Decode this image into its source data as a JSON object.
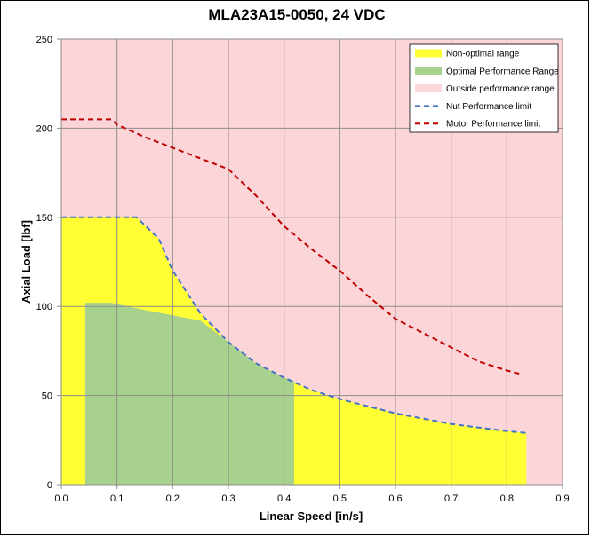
{
  "chart_data": {
    "type": "area",
    "title": "MLA23A15-0050, 24 VDC",
    "xlabel": "Linear Speed [in/s]",
    "ylabel": "Axial Load [lbf]",
    "xlim": [
      0,
      0.9
    ],
    "ylim": [
      0,
      250
    ],
    "x_ticks": [
      "0.0",
      "0.1",
      "0.2",
      "0.3",
      "0.4",
      "0.5",
      "0.6",
      "0.7",
      "0.8",
      "0.9"
    ],
    "y_ticks": [
      "0",
      "50",
      "100",
      "150",
      "200",
      "250"
    ],
    "grid": true,
    "legend_position": "top-right",
    "series": [
      {
        "name": "Non-optimal range",
        "style": "area",
        "color": "#FFFF33",
        "points": [
          [
            0,
            150
          ],
          [
            0.135,
            150
          ],
          [
            0.175,
            138
          ],
          [
            0.2,
            120
          ],
          [
            0.25,
            96
          ],
          [
            0.3,
            80
          ],
          [
            0.35,
            68
          ],
          [
            0.4,
            60
          ],
          [
            0.45,
            53
          ],
          [
            0.5,
            48
          ],
          [
            0.55,
            44
          ],
          [
            0.6,
            40
          ],
          [
            0.65,
            37
          ],
          [
            0.7,
            34
          ],
          [
            0.75,
            32
          ],
          [
            0.8,
            30
          ],
          [
            0.835,
            29
          ],
          [
            0.835,
            0
          ],
          [
            0,
            0
          ]
        ]
      },
      {
        "name": "Optimal Performance Range",
        "style": "area",
        "color": "#A9D18E",
        "points": [
          [
            0.043,
            0
          ],
          [
            0.043,
            102
          ],
          [
            0.09,
            102
          ],
          [
            0.15,
            98
          ],
          [
            0.2,
            95
          ],
          [
            0.25,
            92
          ],
          [
            0.3,
            80
          ],
          [
            0.35,
            68
          ],
          [
            0.4,
            60
          ],
          [
            0.418,
            58
          ],
          [
            0.418,
            0
          ]
        ]
      },
      {
        "name": "Outside performance range",
        "style": "area",
        "color": "#FCD5D8",
        "points": [
          [
            0,
            0
          ],
          [
            0.9,
            0
          ],
          [
            0.9,
            250
          ],
          [
            0,
            250
          ]
        ]
      },
      {
        "name": "Nut Performance limit",
        "style": "dashed",
        "color": "#4472C4",
        "points": [
          [
            0,
            150
          ],
          [
            0.135,
            150
          ],
          [
            0.175,
            138
          ],
          [
            0.2,
            120
          ],
          [
            0.25,
            96
          ],
          [
            0.3,
            80
          ],
          [
            0.35,
            68
          ],
          [
            0.4,
            60
          ],
          [
            0.45,
            53
          ],
          [
            0.5,
            48
          ],
          [
            0.55,
            44
          ],
          [
            0.6,
            40
          ],
          [
            0.65,
            37
          ],
          [
            0.7,
            34
          ],
          [
            0.75,
            32
          ],
          [
            0.8,
            30
          ],
          [
            0.835,
            29
          ]
        ]
      },
      {
        "name": "Motor Performance limit",
        "style": "dashed",
        "color": "#C00000",
        "points": [
          [
            0,
            205
          ],
          [
            0.09,
            205
          ],
          [
            0.1,
            202
          ],
          [
            0.15,
            195
          ],
          [
            0.2,
            189
          ],
          [
            0.25,
            183
          ],
          [
            0.3,
            177
          ],
          [
            0.35,
            162
          ],
          [
            0.4,
            145
          ],
          [
            0.45,
            132
          ],
          [
            0.5,
            120
          ],
          [
            0.55,
            106
          ],
          [
            0.6,
            93
          ],
          [
            0.65,
            85
          ],
          [
            0.7,
            77
          ],
          [
            0.75,
            69
          ],
          [
            0.8,
            64
          ],
          [
            0.825,
            62
          ]
        ]
      }
    ]
  }
}
